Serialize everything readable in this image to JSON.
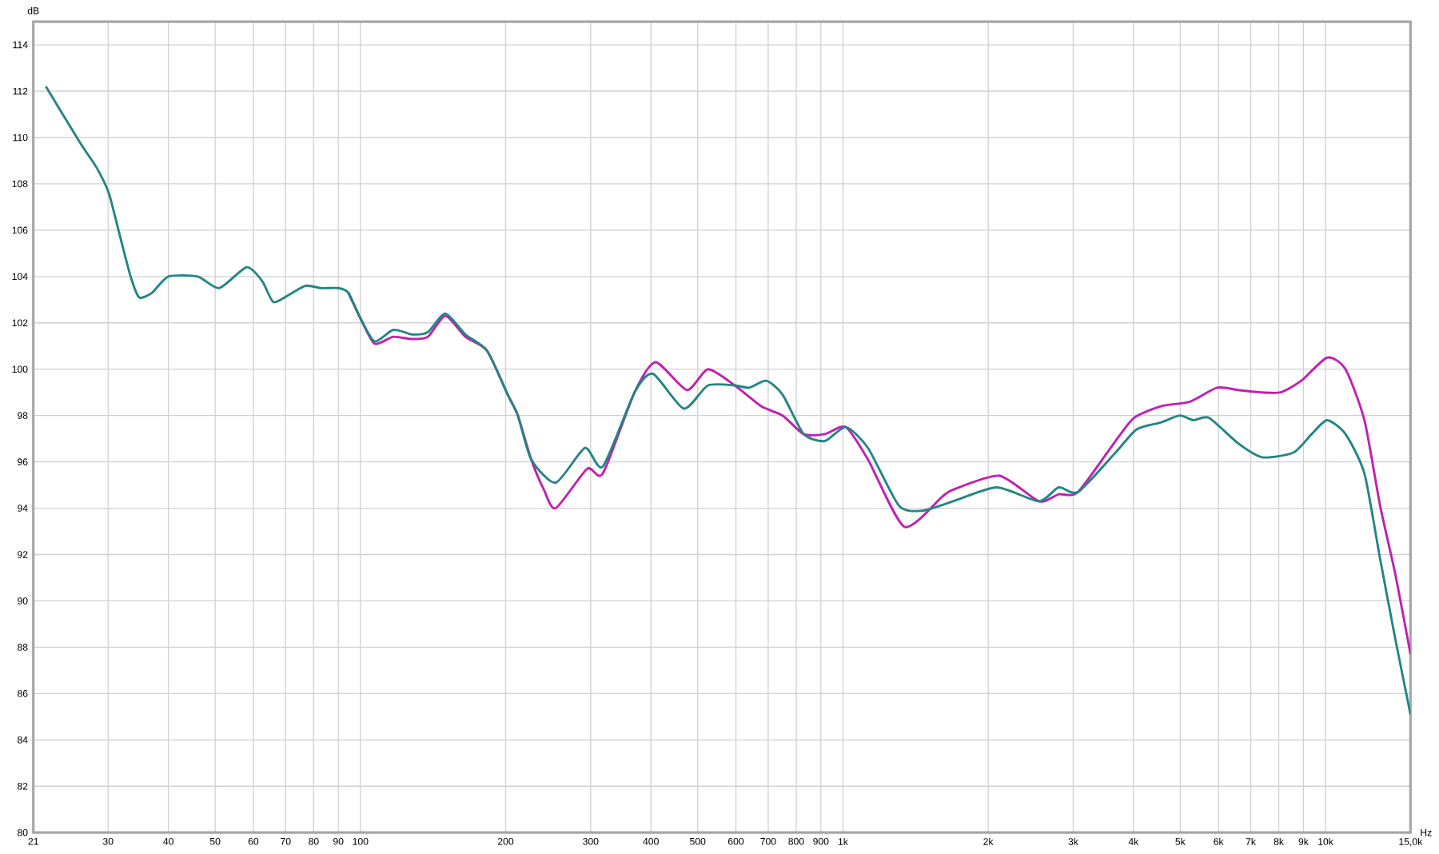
{
  "chart_data": {
    "type": "line",
    "xlabel": "Hz",
    "ylabel": "dB",
    "log": "x",
    "grid": true,
    "marker": "none",
    "line_style": "solid",
    "xlim": [
      21,
      15000
    ],
    "ylim": [
      80,
      115
    ],
    "xticks": [
      21,
      30,
      40,
      50,
      60,
      70,
      80,
      90,
      100,
      200,
      300,
      400,
      500,
      600,
      700,
      800,
      900,
      {
        "value": 1000,
        "label": "1k"
      },
      {
        "value": 2000,
        "label": "2k"
      },
      {
        "value": 3000,
        "label": "3k"
      },
      {
        "value": 4000,
        "label": "4k"
      },
      {
        "value": 5000,
        "label": "5k"
      },
      {
        "value": 6000,
        "label": "6k"
      },
      {
        "value": 7000,
        "label": "7k"
      },
      {
        "value": 8000,
        "label": "8k"
      },
      {
        "value": 9000,
        "label": "9k"
      },
      {
        "value": 10000,
        "label": "10k"
      },
      {
        "value": 15000,
        "label": "15,0k"
      }
    ],
    "yticks": [
      80,
      82,
      84,
      86,
      88,
      90,
      92,
      94,
      96,
      98,
      100,
      102,
      104,
      106,
      108,
      110,
      112,
      114
    ],
    "series": [
      {
        "color": "#c020b0",
        "x": [
          94.4,
          100,
          107,
          117,
          128,
          138,
          150,
          165,
          183,
          202,
          212,
          226,
          240,
          254,
          295,
          318,
          370,
          409,
          475,
          525,
          597,
          677,
          750,
          829,
          917,
          1014,
          1127,
          1340,
          1606,
          1692,
          2109,
          2548,
          2800,
          3070,
          3672,
          4010,
          4557,
          5236,
          5960,
          6590,
          7390,
          8070,
          8910,
          10080,
          11000,
          12040,
          12980,
          13970,
          15000
        ],
        "values": [
          103.3,
          102.2,
          101.1,
          101.4,
          101.3,
          101.4,
          102.3,
          101.4,
          100.8,
          98.9,
          98.0,
          96.1,
          94.8,
          94.0,
          95.7,
          95.5,
          99.0,
          100.3,
          99.1,
          100.0,
          99.3,
          98.4,
          98.0,
          97.2,
          97.2,
          97.5,
          96.1,
          93.2,
          94.5,
          94.8,
          95.4,
          94.3,
          94.6,
          94.7,
          96.9,
          97.9,
          98.4,
          98.6,
          99.2,
          99.1,
          99.0,
          99.0,
          99.5,
          100.5,
          100.0,
          97.8,
          94.1,
          91.1,
          87.7
        ]
      },
      {
        "color": "#238585",
        "x": [
          22.3,
          26.2,
          28.4,
          30.1,
          31.7,
          33.4,
          34.8,
          37,
          40,
          46,
          51,
          58.1,
          62.6,
          66,
          71,
          77,
          83,
          90,
          94.4,
          100,
          107,
          117,
          128,
          138,
          150,
          165,
          183,
          202,
          212,
          226,
          254,
          292,
          318,
          370,
          404,
          468,
          525,
          597,
          640,
          693,
          750,
          829,
          917,
          1014,
          1127,
          1307,
          1467,
          1692,
          2083,
          2548,
          2800,
          3070,
          3672,
          4060,
          4557,
          4985,
          5330,
          5735,
          6590,
          7390,
          8580,
          9360,
          10080,
          11000,
          12040,
          12980,
          13970,
          15000
        ],
        "values": [
          112.2,
          109.8,
          108.7,
          107.6,
          105.8,
          104.0,
          103.1,
          103.3,
          104.0,
          104.0,
          103.5,
          104.4,
          103.8,
          102.9,
          103.2,
          103.6,
          103.5,
          103.5,
          103.3,
          102.2,
          101.2,
          101.7,
          101.5,
          101.6,
          102.4,
          101.5,
          100.8,
          98.9,
          98.0,
          96.1,
          95.1,
          96.6,
          95.8,
          99.0,
          99.8,
          98.3,
          99.3,
          99.3,
          99.2,
          99.5,
          98.9,
          97.2,
          96.9,
          97.5,
          96.6,
          94.1,
          93.9,
          94.3,
          94.9,
          94.3,
          94.9,
          94.7,
          96.4,
          97.4,
          97.7,
          98.0,
          97.8,
          97.9,
          96.8,
          96.2,
          96.4,
          97.2,
          97.8,
          97.2,
          95.5,
          91.8,
          88.3,
          85.1
        ]
      }
    ]
  }
}
